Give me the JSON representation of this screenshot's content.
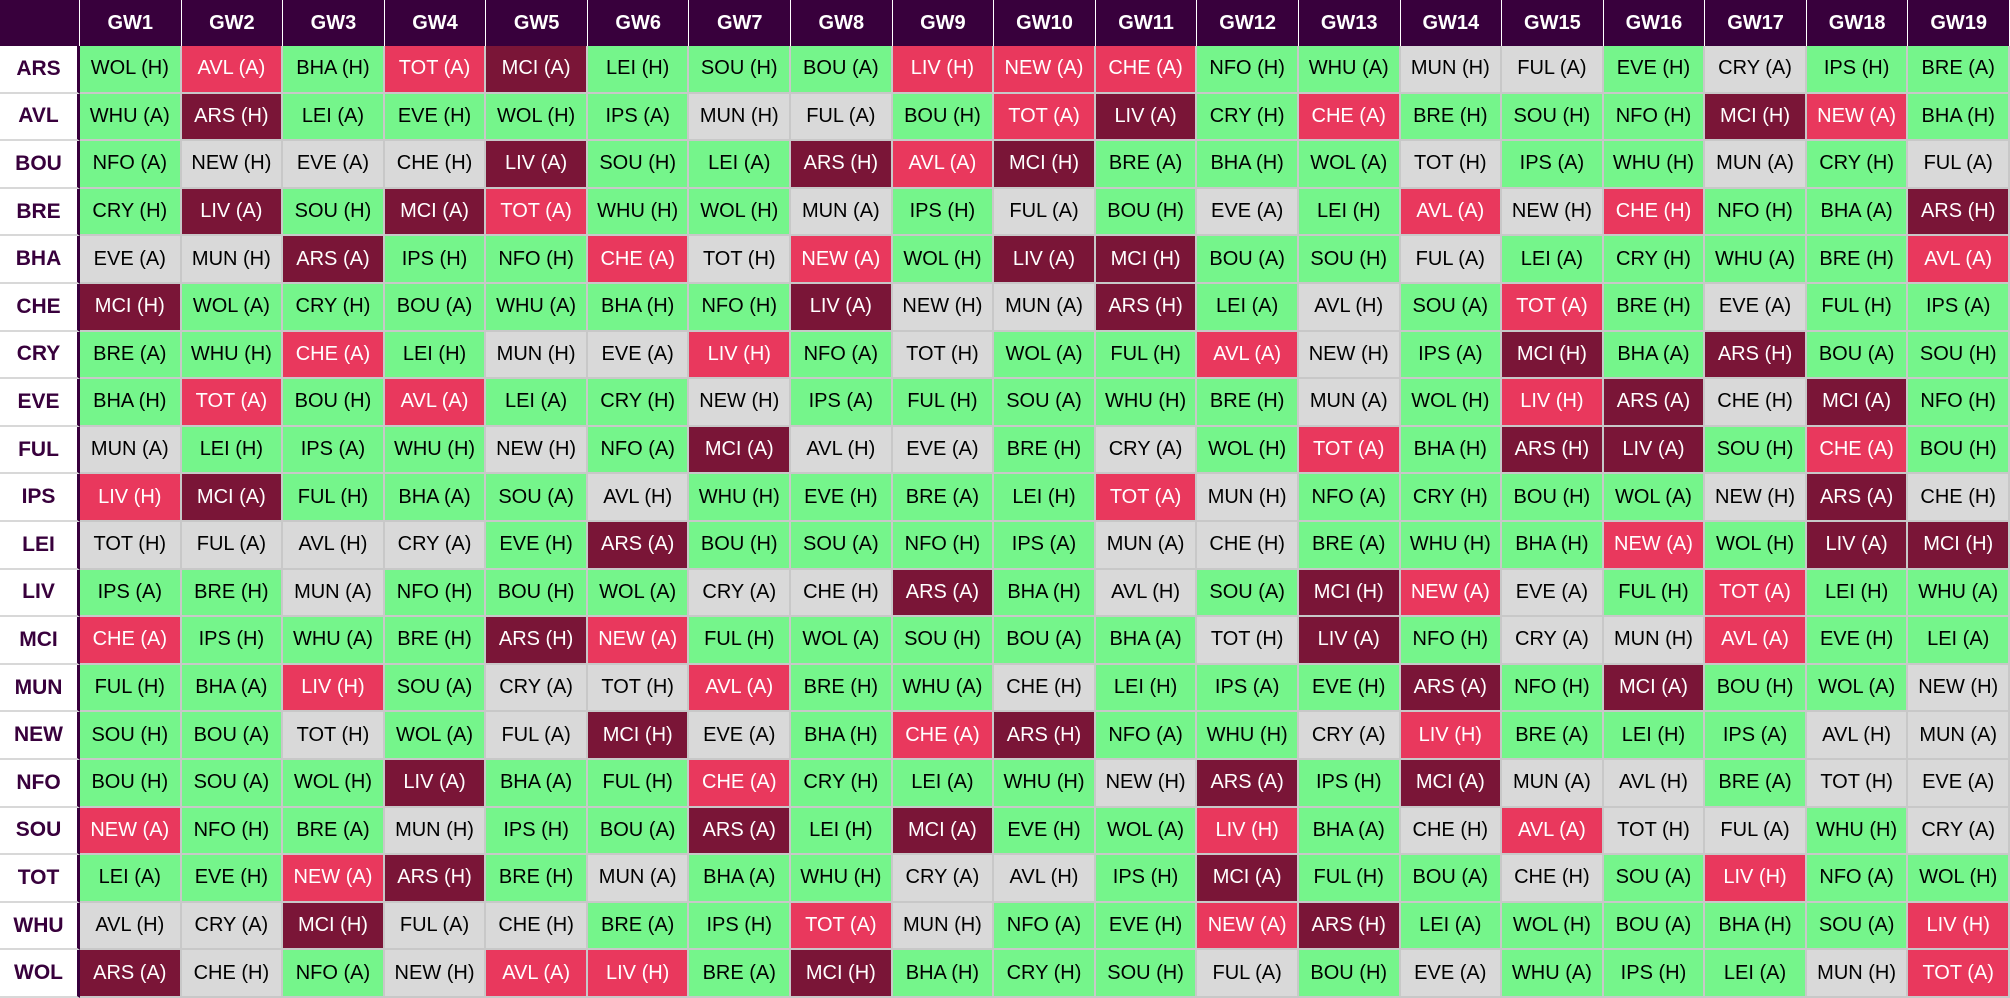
{
  "table": {
    "columns": [
      "GW1",
      "GW2",
      "GW3",
      "GW4",
      "GW5",
      "GW6",
      "GW7",
      "GW8",
      "GW9",
      "GW10",
      "GW11",
      "GW12",
      "GW13",
      "GW14",
      "GW15",
      "GW16",
      "GW17",
      "GW18",
      "GW19"
    ],
    "rows": [
      {
        "team": "ARS",
        "fixtures": [
          "WOL (H)",
          "AVL (A)",
          "BHA (H)",
          "TOT (A)",
          "MCI (A)",
          "LEI (H)",
          "SOU (H)",
          "BOU (A)",
          "LIV (H)",
          "NEW (A)",
          "CHE (A)",
          "NFO (H)",
          "WHU (A)",
          "MUN (H)",
          "FUL (A)",
          "EVE (H)",
          "CRY (A)",
          "IPS (H)",
          "BRE (A)"
        ],
        "colors": [
          "#75f58b",
          "#e9385d",
          "#75f58b",
          "#e9385d",
          "#7a1537",
          "#75f58b",
          "#75f58b",
          "#75f58b",
          "#e9385d",
          "#e9385d",
          "#e9385d",
          "#75f58b",
          "#75f58b",
          "#d9d9d9",
          "#d9d9d9",
          "#75f58b",
          "#d9d9d9",
          "#75f58b",
          "#75f58b"
        ]
      },
      {
        "team": "AVL",
        "fixtures": [
          "WHU (A)",
          "ARS (H)",
          "LEI (A)",
          "EVE (H)",
          "WOL (H)",
          "IPS (A)",
          "MUN (H)",
          "FUL (A)",
          "BOU (H)",
          "TOT (A)",
          "LIV (A)",
          "CRY (H)",
          "CHE (A)",
          "BRE (H)",
          "SOU (H)",
          "NFO (H)",
          "MCI (H)",
          "NEW (A)",
          "BHA (H)"
        ],
        "colors": [
          "#75f58b",
          "#7a1537",
          "#75f58b",
          "#75f58b",
          "#75f58b",
          "#75f58b",
          "#d9d9d9",
          "#d9d9d9",
          "#75f58b",
          "#e9385d",
          "#7a1537",
          "#75f58b",
          "#e9385d",
          "#75f58b",
          "#75f58b",
          "#75f58b",
          "#7a1537",
          "#e9385d",
          "#75f58b"
        ]
      },
      {
        "team": "BOU",
        "fixtures": [
          "NFO (A)",
          "NEW (H)",
          "EVE (A)",
          "CHE (H)",
          "LIV (A)",
          "SOU (H)",
          "LEI (A)",
          "ARS (H)",
          "AVL (A)",
          "MCI (H)",
          "BRE (A)",
          "BHA (H)",
          "WOL (A)",
          "TOT (H)",
          "IPS (A)",
          "WHU (H)",
          "MUN (A)",
          "CRY (H)",
          "FUL (A)"
        ],
        "colors": [
          "#75f58b",
          "#d9d9d9",
          "#d9d9d9",
          "#d9d9d9",
          "#7a1537",
          "#75f58b",
          "#75f58b",
          "#7a1537",
          "#e9385d",
          "#7a1537",
          "#75f58b",
          "#75f58b",
          "#75f58b",
          "#d9d9d9",
          "#75f58b",
          "#75f58b",
          "#d9d9d9",
          "#75f58b",
          "#d9d9d9"
        ]
      },
      {
        "team": "BRE",
        "fixtures": [
          "CRY (H)",
          "LIV (A)",
          "SOU (H)",
          "MCI (A)",
          "TOT (A)",
          "WHU (H)",
          "WOL (H)",
          "MUN (A)",
          "IPS (H)",
          "FUL (A)",
          "BOU (H)",
          "EVE (A)",
          "LEI (H)",
          "AVL (A)",
          "NEW (H)",
          "CHE (H)",
          "NFO (H)",
          "BHA (A)",
          "ARS (H)"
        ],
        "colors": [
          "#75f58b",
          "#7a1537",
          "#75f58b",
          "#7a1537",
          "#e9385d",
          "#75f58b",
          "#75f58b",
          "#d9d9d9",
          "#75f58b",
          "#d9d9d9",
          "#75f58b",
          "#d9d9d9",
          "#75f58b",
          "#e9385d",
          "#d9d9d9",
          "#e9385d",
          "#75f58b",
          "#75f58b",
          "#7a1537"
        ]
      },
      {
        "team": "BHA",
        "fixtures": [
          "EVE (A)",
          "MUN (H)",
          "ARS (A)",
          "IPS (H)",
          "NFO (H)",
          "CHE (A)",
          "TOT (H)",
          "NEW (A)",
          "WOL (H)",
          "LIV (A)",
          "MCI (H)",
          "BOU (A)",
          "SOU (H)",
          "FUL (A)",
          "LEI (A)",
          "CRY (H)",
          "WHU (A)",
          "BRE (H)",
          "AVL (A)"
        ],
        "colors": [
          "#d9d9d9",
          "#d9d9d9",
          "#7a1537",
          "#75f58b",
          "#75f58b",
          "#e9385d",
          "#d9d9d9",
          "#e9385d",
          "#75f58b",
          "#7a1537",
          "#7a1537",
          "#75f58b",
          "#75f58b",
          "#d9d9d9",
          "#75f58b",
          "#75f58b",
          "#75f58b",
          "#75f58b",
          "#e9385d"
        ]
      },
      {
        "team": "CHE",
        "fixtures": [
          "MCI (H)",
          "WOL (A)",
          "CRY (H)",
          "BOU (A)",
          "WHU (A)",
          "BHA (H)",
          "NFO (H)",
          "LIV (A)",
          "NEW (H)",
          "MUN (A)",
          "ARS (H)",
          "LEI (A)",
          "AVL (H)",
          "SOU (A)",
          "TOT (A)",
          "BRE (H)",
          "EVE (A)",
          "FUL (H)",
          "IPS (A)"
        ],
        "colors": [
          "#7a1537",
          "#75f58b",
          "#75f58b",
          "#75f58b",
          "#75f58b",
          "#75f58b",
          "#75f58b",
          "#7a1537",
          "#d9d9d9",
          "#d9d9d9",
          "#7a1537",
          "#75f58b",
          "#d9d9d9",
          "#75f58b",
          "#e9385d",
          "#75f58b",
          "#d9d9d9",
          "#75f58b",
          "#75f58b"
        ]
      },
      {
        "team": "CRY",
        "fixtures": [
          "BRE (A)",
          "WHU (H)",
          "CHE (A)",
          "LEI (H)",
          "MUN (H)",
          "EVE (A)",
          "LIV (H)",
          "NFO (A)",
          "TOT (H)",
          "WOL (A)",
          "FUL (H)",
          "AVL (A)",
          "NEW (H)",
          "IPS (A)",
          "MCI (H)",
          "BHA (A)",
          "ARS (H)",
          "BOU (A)",
          "SOU (H)"
        ],
        "colors": [
          "#75f58b",
          "#75f58b",
          "#e9385d",
          "#75f58b",
          "#d9d9d9",
          "#d9d9d9",
          "#e9385d",
          "#75f58b",
          "#d9d9d9",
          "#75f58b",
          "#75f58b",
          "#e9385d",
          "#d9d9d9",
          "#75f58b",
          "#7a1537",
          "#75f58b",
          "#7a1537",
          "#75f58b",
          "#75f58b"
        ]
      },
      {
        "team": "EVE",
        "fixtures": [
          "BHA (H)",
          "TOT (A)",
          "BOU (H)",
          "AVL (A)",
          "LEI (A)",
          "CRY (H)",
          "NEW (H)",
          "IPS (A)",
          "FUL (H)",
          "SOU (A)",
          "WHU (H)",
          "BRE (H)",
          "MUN (A)",
          "WOL (H)",
          "LIV (H)",
          "ARS (A)",
          "CHE (H)",
          "MCI (A)",
          "NFO (H)"
        ],
        "colors": [
          "#75f58b",
          "#e9385d",
          "#75f58b",
          "#e9385d",
          "#75f58b",
          "#75f58b",
          "#d9d9d9",
          "#75f58b",
          "#75f58b",
          "#75f58b",
          "#75f58b",
          "#75f58b",
          "#d9d9d9",
          "#75f58b",
          "#e9385d",
          "#7a1537",
          "#d9d9d9",
          "#7a1537",
          "#75f58b"
        ]
      },
      {
        "team": "FUL",
        "fixtures": [
          "MUN (A)",
          "LEI (H)",
          "IPS (A)",
          "WHU (H)",
          "NEW (H)",
          "NFO (A)",
          "MCI (A)",
          "AVL (H)",
          "EVE (A)",
          "BRE (H)",
          "CRY (A)",
          "WOL (H)",
          "TOT (A)",
          "BHA (H)",
          "ARS (H)",
          "LIV (A)",
          "SOU (H)",
          "CHE (A)",
          "BOU (H)"
        ],
        "colors": [
          "#d9d9d9",
          "#75f58b",
          "#75f58b",
          "#75f58b",
          "#d9d9d9",
          "#75f58b",
          "#7a1537",
          "#d9d9d9",
          "#d9d9d9",
          "#75f58b",
          "#d9d9d9",
          "#75f58b",
          "#e9385d",
          "#75f58b",
          "#7a1537",
          "#7a1537",
          "#75f58b",
          "#e9385d",
          "#75f58b"
        ]
      },
      {
        "team": "IPS",
        "fixtures": [
          "LIV (H)",
          "MCI (A)",
          "FUL (H)",
          "BHA (A)",
          "SOU (A)",
          "AVL (H)",
          "WHU (H)",
          "EVE (H)",
          "BRE (A)",
          "LEI (H)",
          "TOT (A)",
          "MUN (H)",
          "NFO (A)",
          "CRY (H)",
          "BOU (H)",
          "WOL (A)",
          "NEW (H)",
          "ARS (A)",
          "CHE (H)"
        ],
        "colors": [
          "#e9385d",
          "#7a1537",
          "#75f58b",
          "#75f58b",
          "#75f58b",
          "#d9d9d9",
          "#75f58b",
          "#75f58b",
          "#75f58b",
          "#75f58b",
          "#e9385d",
          "#d9d9d9",
          "#75f58b",
          "#75f58b",
          "#75f58b",
          "#75f58b",
          "#d9d9d9",
          "#7a1537",
          "#d9d9d9"
        ]
      },
      {
        "team": "LEI",
        "fixtures": [
          "TOT (H)",
          "FUL (A)",
          "AVL (H)",
          "CRY (A)",
          "EVE (H)",
          "ARS (A)",
          "BOU (H)",
          "SOU (A)",
          "NFO (H)",
          "IPS (A)",
          "MUN (A)",
          "CHE (H)",
          "BRE (A)",
          "WHU (H)",
          "BHA (H)",
          "NEW (A)",
          "WOL (H)",
          "LIV (A)",
          "MCI (H)"
        ],
        "colors": [
          "#d9d9d9",
          "#d9d9d9",
          "#d9d9d9",
          "#d9d9d9",
          "#75f58b",
          "#7a1537",
          "#75f58b",
          "#75f58b",
          "#75f58b",
          "#75f58b",
          "#d9d9d9",
          "#d9d9d9",
          "#75f58b",
          "#75f58b",
          "#75f58b",
          "#e9385d",
          "#75f58b",
          "#7a1537",
          "#7a1537"
        ]
      },
      {
        "team": "LIV",
        "fixtures": [
          "IPS (A)",
          "BRE (H)",
          "MUN (A)",
          "NFO (H)",
          "BOU (H)",
          "WOL (A)",
          "CRY (A)",
          "CHE (H)",
          "ARS (A)",
          "BHA (H)",
          "AVL (H)",
          "SOU (A)",
          "MCI (H)",
          "NEW (A)",
          "EVE (A)",
          "FUL (H)",
          "TOT (A)",
          "LEI (H)",
          "WHU (A)"
        ],
        "colors": [
          "#75f58b",
          "#75f58b",
          "#d9d9d9",
          "#75f58b",
          "#75f58b",
          "#75f58b",
          "#d9d9d9",
          "#d9d9d9",
          "#7a1537",
          "#75f58b",
          "#d9d9d9",
          "#75f58b",
          "#7a1537",
          "#e9385d",
          "#d9d9d9",
          "#75f58b",
          "#e9385d",
          "#75f58b",
          "#75f58b"
        ]
      },
      {
        "team": "MCI",
        "fixtures": [
          "CHE (A)",
          "IPS (H)",
          "WHU (A)",
          "BRE (H)",
          "ARS (H)",
          "NEW (A)",
          "FUL (H)",
          "WOL (A)",
          "SOU (H)",
          "BOU (A)",
          "BHA (A)",
          "TOT (H)",
          "LIV (A)",
          "NFO (H)",
          "CRY (A)",
          "MUN (H)",
          "AVL (A)",
          "EVE (H)",
          "LEI (A)"
        ],
        "colors": [
          "#e9385d",
          "#75f58b",
          "#75f58b",
          "#75f58b",
          "#7a1537",
          "#e9385d",
          "#75f58b",
          "#75f58b",
          "#75f58b",
          "#75f58b",
          "#75f58b",
          "#d9d9d9",
          "#7a1537",
          "#75f58b",
          "#d9d9d9",
          "#d9d9d9",
          "#e9385d",
          "#75f58b",
          "#75f58b"
        ]
      },
      {
        "team": "MUN",
        "fixtures": [
          "FUL (H)",
          "BHA (A)",
          "LIV (H)",
          "SOU (A)",
          "CRY (A)",
          "TOT (H)",
          "AVL (A)",
          "BRE (H)",
          "WHU (A)",
          "CHE (H)",
          "LEI (H)",
          "IPS (A)",
          "EVE (H)",
          "ARS (A)",
          "NFO (H)",
          "MCI (A)",
          "BOU (H)",
          "WOL (A)",
          "NEW (H)"
        ],
        "colors": [
          "#75f58b",
          "#75f58b",
          "#e9385d",
          "#75f58b",
          "#d9d9d9",
          "#d9d9d9",
          "#e9385d",
          "#75f58b",
          "#75f58b",
          "#d9d9d9",
          "#75f58b",
          "#75f58b",
          "#75f58b",
          "#7a1537",
          "#75f58b",
          "#7a1537",
          "#75f58b",
          "#75f58b",
          "#d9d9d9"
        ]
      },
      {
        "team": "NEW",
        "fixtures": [
          "SOU (H)",
          "BOU (A)",
          "TOT (H)",
          "WOL (A)",
          "FUL (A)",
          "MCI (H)",
          "EVE (A)",
          "BHA (H)",
          "CHE (A)",
          "ARS (H)",
          "NFO (A)",
          "WHU (H)",
          "CRY (A)",
          "LIV (H)",
          "BRE (A)",
          "LEI (H)",
          "IPS (A)",
          "AVL (H)",
          "MUN (A)"
        ],
        "colors": [
          "#75f58b",
          "#75f58b",
          "#d9d9d9",
          "#75f58b",
          "#d9d9d9",
          "#7a1537",
          "#d9d9d9",
          "#75f58b",
          "#e9385d",
          "#7a1537",
          "#75f58b",
          "#75f58b",
          "#d9d9d9",
          "#e9385d",
          "#75f58b",
          "#75f58b",
          "#75f58b",
          "#d9d9d9",
          "#d9d9d9"
        ]
      },
      {
        "team": "NFO",
        "fixtures": [
          "BOU (H)",
          "SOU (A)",
          "WOL (H)",
          "LIV (A)",
          "BHA (A)",
          "FUL (H)",
          "CHE (A)",
          "CRY (H)",
          "LEI (A)",
          "WHU (H)",
          "NEW (H)",
          "ARS (A)",
          "IPS (H)",
          "MCI (A)",
          "MUN (A)",
          "AVL (H)",
          "BRE (A)",
          "TOT (H)",
          "EVE (A)"
        ],
        "colors": [
          "#75f58b",
          "#75f58b",
          "#75f58b",
          "#7a1537",
          "#75f58b",
          "#75f58b",
          "#e9385d",
          "#75f58b",
          "#75f58b",
          "#75f58b",
          "#d9d9d9",
          "#7a1537",
          "#75f58b",
          "#7a1537",
          "#d9d9d9",
          "#d9d9d9",
          "#75f58b",
          "#d9d9d9",
          "#d9d9d9"
        ]
      },
      {
        "team": "SOU",
        "fixtures": [
          "NEW (A)",
          "NFO (H)",
          "BRE (A)",
          "MUN (H)",
          "IPS (H)",
          "BOU (A)",
          "ARS (A)",
          "LEI (H)",
          "MCI (A)",
          "EVE (H)",
          "WOL (A)",
          "LIV (H)",
          "BHA (A)",
          "CHE (H)",
          "AVL (A)",
          "TOT (H)",
          "FUL (A)",
          "WHU (H)",
          "CRY (A)"
        ],
        "colors": [
          "#e9385d",
          "#75f58b",
          "#75f58b",
          "#d9d9d9",
          "#75f58b",
          "#75f58b",
          "#7a1537",
          "#75f58b",
          "#7a1537",
          "#75f58b",
          "#75f58b",
          "#e9385d",
          "#75f58b",
          "#d9d9d9",
          "#e9385d",
          "#d9d9d9",
          "#d9d9d9",
          "#75f58b",
          "#d9d9d9"
        ]
      },
      {
        "team": "TOT",
        "fixtures": [
          "LEI (A)",
          "EVE (H)",
          "NEW (A)",
          "ARS (H)",
          "BRE (H)",
          "MUN (A)",
          "BHA (A)",
          "WHU (H)",
          "CRY (A)",
          "AVL (H)",
          "IPS (H)",
          "MCI (A)",
          "FUL (H)",
          "BOU (A)",
          "CHE (H)",
          "SOU (A)",
          "LIV (H)",
          "NFO (A)",
          "WOL (H)"
        ],
        "colors": [
          "#75f58b",
          "#75f58b",
          "#e9385d",
          "#7a1537",
          "#75f58b",
          "#d9d9d9",
          "#75f58b",
          "#75f58b",
          "#d9d9d9",
          "#d9d9d9",
          "#75f58b",
          "#7a1537",
          "#75f58b",
          "#75f58b",
          "#d9d9d9",
          "#75f58b",
          "#e9385d",
          "#75f58b",
          "#75f58b"
        ]
      },
      {
        "team": "WHU",
        "fixtures": [
          "AVL (H)",
          "CRY (A)",
          "MCI (H)",
          "FUL (A)",
          "CHE (H)",
          "BRE (A)",
          "IPS (H)",
          "TOT (A)",
          "MUN (H)",
          "NFO (A)",
          "EVE (H)",
          "NEW (A)",
          "ARS (H)",
          "LEI (A)",
          "WOL (H)",
          "BOU (A)",
          "BHA (H)",
          "SOU (A)",
          "LIV (H)"
        ],
        "colors": [
          "#d9d9d9",
          "#d9d9d9",
          "#7a1537",
          "#d9d9d9",
          "#d9d9d9",
          "#75f58b",
          "#75f58b",
          "#e9385d",
          "#d9d9d9",
          "#75f58b",
          "#75f58b",
          "#e9385d",
          "#7a1537",
          "#75f58b",
          "#75f58b",
          "#75f58b",
          "#75f58b",
          "#75f58b",
          "#e9385d"
        ]
      },
      {
        "team": "WOL",
        "fixtures": [
          "ARS (A)",
          "CHE (H)",
          "NFO (A)",
          "NEW (H)",
          "AVL (A)",
          "LIV (H)",
          "BRE (A)",
          "MCI (H)",
          "BHA (H)",
          "CRY (H)",
          "SOU (H)",
          "FUL (A)",
          "BOU (H)",
          "EVE (A)",
          "WHU (A)",
          "IPS (H)",
          "LEI (A)",
          "MUN (H)",
          "TOT (A)"
        ],
        "colors": [
          "#7a1537",
          "#d9d9d9",
          "#75f58b",
          "#d9d9d9",
          "#e9385d",
          "#e9385d",
          "#75f58b",
          "#7a1537",
          "#75f58b",
          "#75f58b",
          "#75f58b",
          "#d9d9d9",
          "#75f58b",
          "#d9d9d9",
          "#75f58b",
          "#75f58b",
          "#75f58b",
          "#d9d9d9",
          "#e9385d"
        ]
      }
    ]
  }
}
